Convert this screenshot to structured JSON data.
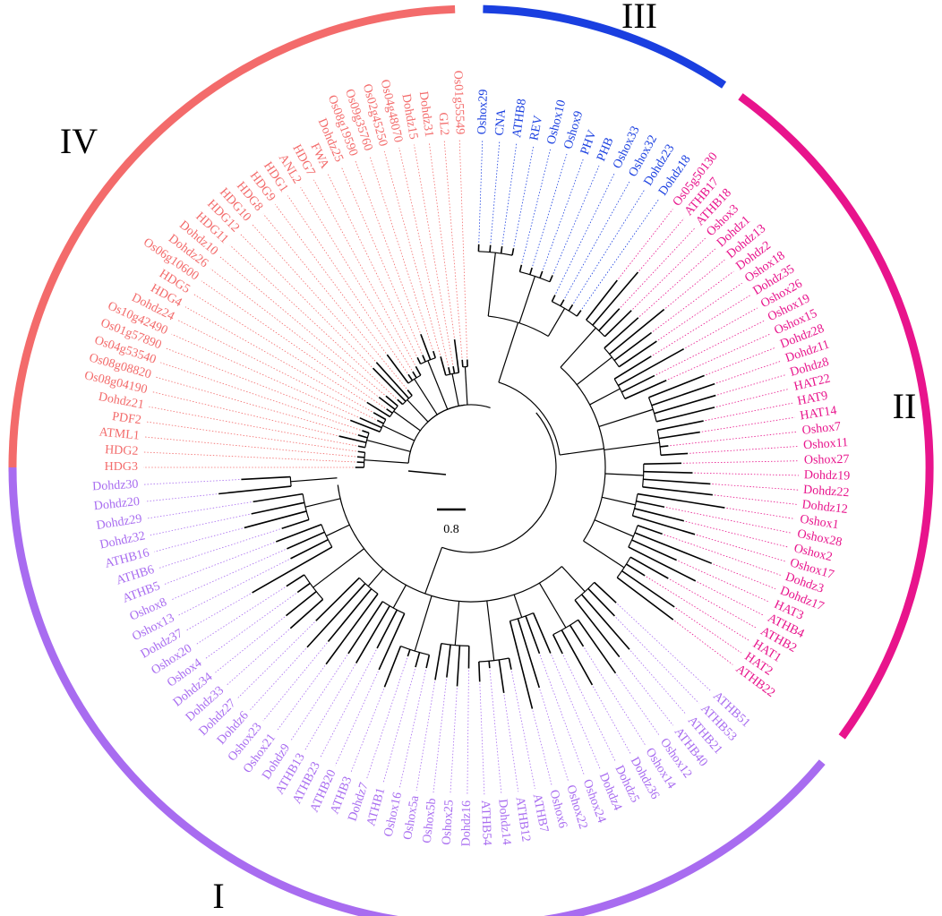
{
  "colors": {
    "I": "#a86cf0",
    "II": "#e8148c",
    "III": "#1a3fe0",
    "IV": "#f36b6b",
    "branch": "#000000"
  },
  "scale_bar": {
    "label": "0.8"
  },
  "clades": [
    {
      "id": "IV",
      "label": "IV",
      "leaves": [
        "HDG3",
        "HDG2",
        "ATML1",
        "PDF2",
        "Dohdz21",
        "Os08g04190",
        "Os08g08820",
        "Os04g53540",
        "Os01g57890",
        "Os10g42490",
        "Dohdz24",
        "HDG4",
        "HDG5",
        "Os06g10600",
        "Dohdz26",
        "Dohdz10",
        "HDG11",
        "HDG12",
        "HDG10",
        "HDG8",
        "HDG9",
        "HDG1",
        "ANL2",
        "HDG7",
        "FWA",
        "Dohdz25",
        "Os08g19590",
        "Os09g35760",
        "Os02g45250",
        "Os04g48070",
        "Dohdz15",
        "Dohdz31",
        "GL2",
        "Os01g55549"
      ]
    },
    {
      "id": "III",
      "label": "III",
      "leaves": [
        "Oshox29",
        "CNA",
        "ATHB8",
        "REV",
        "Oshox10",
        "Oshox9",
        "PHV",
        "PHB",
        "Oshox33",
        "Oshox32",
        "Dohdz23",
        "Dohdz18"
      ]
    },
    {
      "id": "II",
      "label": "II",
      "leaves": [
        "Os05g50130",
        "ATHB17",
        "ATHB18",
        "Oshox3",
        "Dohdz1",
        "Dohdz13",
        "Dohdz2",
        "Oshox18",
        "Dohdz35",
        "Oshox26",
        "Oshox19",
        "Oshox15",
        "Dohdz28",
        "Dohdz11",
        "Dohdz8",
        "HAT22",
        "HAT9",
        "HAT14",
        "Oshox7",
        "Oshox11",
        "Oshox27",
        "Dohdz19",
        "Dohdz22",
        "Dohdz12",
        "Oshox1",
        "Oshox28",
        "Oshox2",
        "Oshox17",
        "Dohdz3",
        "Dohdz17",
        "HAT3",
        "ATHB4",
        "ATHB2",
        "HAT1",
        "HAT2",
        "ATHB22"
      ]
    },
    {
      "id": "I",
      "label": "I",
      "leaves": [
        "ATHB51",
        "ATHB53",
        "ATHB21",
        "ATHB40",
        "Oshox12",
        "Oshox14",
        "Dohdz36",
        "Dohdz5",
        "Dohdz4",
        "Oshox24",
        "Oshox22",
        "Oshox6",
        "ATHB7",
        "ATHB12",
        "Dohdz14",
        "ATHB54",
        "Dohdz16",
        "Oshox25",
        "Oshox5b",
        "Oshox5a",
        "Oshox16",
        "ATHB1",
        "Dohdz7",
        "ATHB3",
        "ATHB20",
        "ATHB23",
        "ATHB13",
        "Dohdz9",
        "Oshox21",
        "Oshox23",
        "Dohdz6",
        "Dohdz27",
        "Dohdz33",
        "Dohdz34",
        "Oshox4",
        "Oshox20",
        "Dohdz37",
        "Oshox13",
        "Oshox8",
        "ATHB5",
        "ATHB6",
        "ATHB16",
        "Dohdz32",
        "Dohdz29",
        "Dohdz20",
        "Dohdz30"
      ]
    }
  ]
}
